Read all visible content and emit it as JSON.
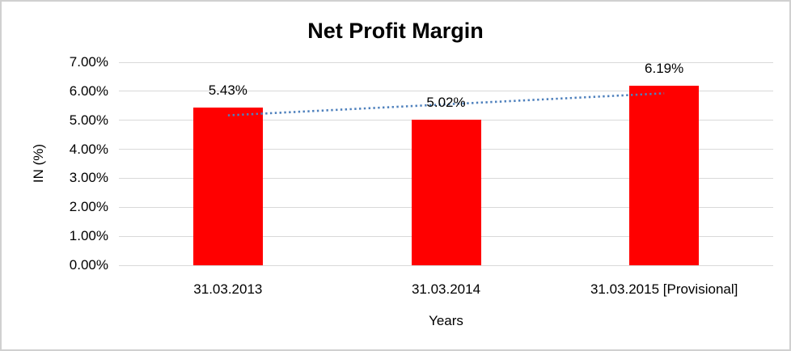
{
  "chart_data": {
    "type": "bar",
    "title": "Net Profit Margin",
    "xlabel": "Years",
    "ylabel": "IN (%)",
    "categories": [
      "31.03.2013",
      "31.03.2014",
      "31.03.2015 [Provisional]"
    ],
    "values": [
      5.43,
      5.02,
      6.19
    ],
    "value_labels": [
      "5.43%",
      "5.02%",
      "6.19%"
    ],
    "ylim": [
      0,
      7
    ],
    "ytick_step": 1,
    "ytick_labels": [
      "0.00%",
      "1.00%",
      "2.00%",
      "3.00%",
      "4.00%",
      "5.00%",
      "6.00%",
      "7.00%"
    ],
    "grid": true,
    "legend": "none",
    "bar_color": "#ff0000",
    "trendline": {
      "type": "linear",
      "style": "dotted",
      "color": "#4f81bd",
      "start_value": 5.17,
      "end_value": 5.93
    }
  }
}
